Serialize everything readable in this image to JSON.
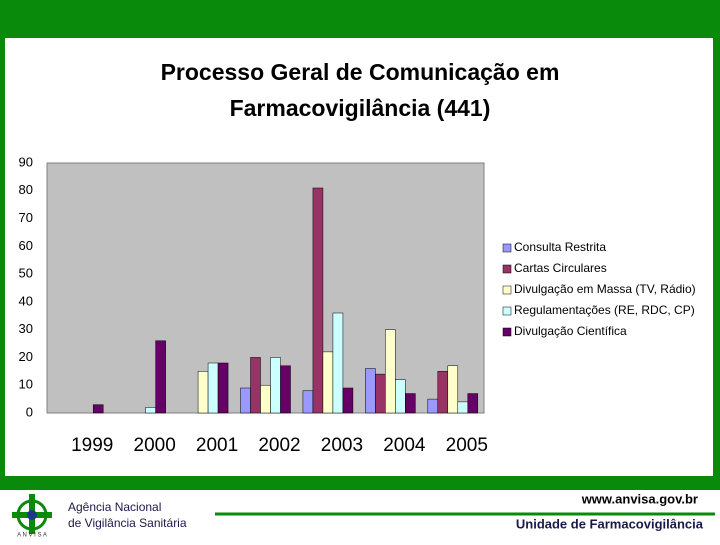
{
  "chart_data": {
    "type": "bar",
    "title": "Processo Geral de Comunicação em Farmacovigilância (441)",
    "categories": [
      "1999",
      "2000",
      "2001",
      "2002",
      "2003",
      "2004",
      "2005"
    ],
    "series": [
      {
        "name": "Consulta Restrita",
        "color": "#9999ff",
        "values": [
          0,
          0,
          0,
          9,
          8,
          16,
          5
        ]
      },
      {
        "name": "Cartas Circulares",
        "color": "#993366",
        "values": [
          0,
          0,
          0,
          20,
          81,
          14,
          15
        ]
      },
      {
        "name": "Divulgação em Massa (TV, Rádio)",
        "color": "#ffffcc",
        "values": [
          0,
          0,
          15,
          10,
          22,
          30,
          17
        ]
      },
      {
        "name": "Regulamentações (RE, RDC, CP)",
        "color": "#ccffff",
        "values": [
          0,
          2,
          18,
          20,
          36,
          12,
          4
        ]
      },
      {
        "name": "Divulgação Científica",
        "color": "#660066",
        "values": [
          3,
          26,
          18,
          17,
          9,
          7,
          7
        ]
      }
    ],
    "ylim": [
      0,
      90
    ],
    "yticks": [
      0,
      10,
      20,
      30,
      40,
      50,
      60,
      70,
      80,
      90
    ],
    "grid": false,
    "legend": "right"
  },
  "footer": {
    "agency_line1": "Agência Nacional",
    "agency_line2": "de Vigilância Sanitária",
    "logo_text": "A N V I S A",
    "url": "www.anvisa.gov.br",
    "unit": "Unidade de Farmacovigilância"
  }
}
